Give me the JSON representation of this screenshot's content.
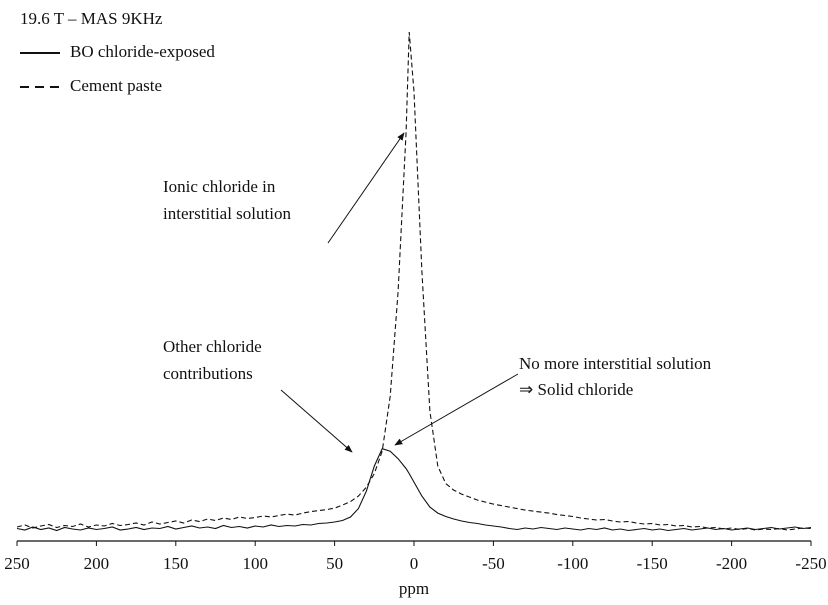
{
  "chart_data": {
    "type": "line",
    "legend_title": "19.6 T – MAS 9KHz",
    "x_label": "ppm",
    "x": [
      250,
      245,
      240,
      235,
      230,
      225,
      220,
      215,
      210,
      205,
      200,
      195,
      190,
      185,
      180,
      175,
      170,
      165,
      160,
      155,
      150,
      145,
      140,
      135,
      130,
      125,
      120,
      115,
      110,
      105,
      100,
      95,
      90,
      85,
      80,
      75,
      70,
      65,
      60,
      55,
      50,
      45,
      40,
      35,
      30,
      25,
      20,
      15,
      10,
      5,
      3,
      0,
      -5,
      -10,
      -15,
      -20,
      -25,
      -30,
      -35,
      -40,
      -45,
      -50,
      -55,
      -60,
      -65,
      -70,
      -75,
      -80,
      -85,
      -90,
      -95,
      -100,
      -105,
      -110,
      -115,
      -120,
      -125,
      -130,
      -135,
      -140,
      -145,
      -150,
      -155,
      -160,
      -165,
      -170,
      -175,
      -180,
      -185,
      -190,
      -195,
      -200,
      -205,
      -210,
      -215,
      -220,
      -225,
      -230,
      -235,
      -240,
      -245,
      -250
    ],
    "series": [
      {
        "name": "BO chloride-exposed",
        "color": "#111111",
        "dash": "solid",
        "values": [
          0.5,
          0.2,
          0.8,
          0.3,
          0.6,
          0.1,
          0.7,
          0.4,
          0.2,
          0.6,
          0.3,
          0.5,
          0.8,
          0.2,
          0.4,
          0.7,
          0.3,
          0.6,
          0.5,
          0.9,
          0.4,
          0.7,
          1.0,
          0.6,
          0.8,
          0.5,
          1.1,
          0.7,
          0.9,
          0.6,
          1.0,
          0.8,
          1.2,
          0.9,
          1.1,
          1.0,
          1.3,
          1.2,
          1.5,
          1.6,
          1.8,
          2.1,
          2.8,
          4.5,
          8,
          13,
          16.5,
          16,
          14.5,
          12.5,
          11.5,
          9.8,
          7,
          4.8,
          3.6,
          2.9,
          2.4,
          2.0,
          1.7,
          1.5,
          1.2,
          1.0,
          0.8,
          0.5,
          0.3,
          0.6,
          0.4,
          0.7,
          0.5,
          0.3,
          0.6,
          0.4,
          0.2,
          0.5,
          0.3,
          0.6,
          0.2,
          0.4,
          0.1,
          0.3,
          0.5,
          0.2,
          0.4,
          0.1,
          0.3,
          0.5,
          0.2,
          0.4,
          0.6,
          0.3,
          0.5,
          0.2,
          0.4,
          0.6,
          0.3,
          0.5,
          0.7,
          0.4,
          0.6,
          0.8,
          0.5,
          0.7
        ]
      },
      {
        "name": "Cement paste",
        "color": "#111111",
        "dash": "dashed",
        "values": [
          0.8,
          1.2,
          0.6,
          1.0,
          1.3,
          0.7,
          1.1,
          0.9,
          1.4,
          0.8,
          1.2,
          1.0,
          1.5,
          1.1,
          1.3,
          1.6,
          1.2,
          1.8,
          1.4,
          1.7,
          2.0,
          1.6,
          2.2,
          1.9,
          2.4,
          2.1,
          2.6,
          2.3,
          2.8,
          2.5,
          2.7,
          3.0,
          2.8,
          3.1,
          3.4,
          3.2,
          3.6,
          3.9,
          4.1,
          4.3,
          4.6,
          5.2,
          5.9,
          7.0,
          8.8,
          11.5,
          16,
          27,
          48,
          80,
          100,
          88,
          52,
          24,
          13,
          9.5,
          8.2,
          7.4,
          6.8,
          6.2,
          5.8,
          5.4,
          5.1,
          4.8,
          4.5,
          4.2,
          4.0,
          3.8,
          3.6,
          3.3,
          3.1,
          2.9,
          2.6,
          2.4,
          2.2,
          2.3,
          2.0,
          1.8,
          1.9,
          1.6,
          1.4,
          1.5,
          1.2,
          1.3,
          1.0,
          1.1,
          0.8,
          0.9,
          0.6,
          0.7,
          0.4,
          0.6,
          0.3,
          0.5,
          0.2,
          0.4,
          0.3,
          0.5,
          0.2,
          0.4,
          0.6,
          0.5
        ]
      }
    ],
    "xlim": [
      250,
      -250
    ],
    "xticks": [
      250,
      200,
      150,
      100,
      50,
      0,
      -50,
      -100,
      -150,
      -200,
      -250
    ],
    "ylim": [
      -2,
      100
    ],
    "annotations": [
      {
        "lines": [
          "Ionic chloride in",
          "interstitial solution"
        ]
      },
      {
        "lines": [
          "Other chloride",
          "contributions"
        ]
      },
      {
        "lines": [
          "No more interstitial solution",
          "⇒ Solid chloride"
        ]
      }
    ]
  }
}
